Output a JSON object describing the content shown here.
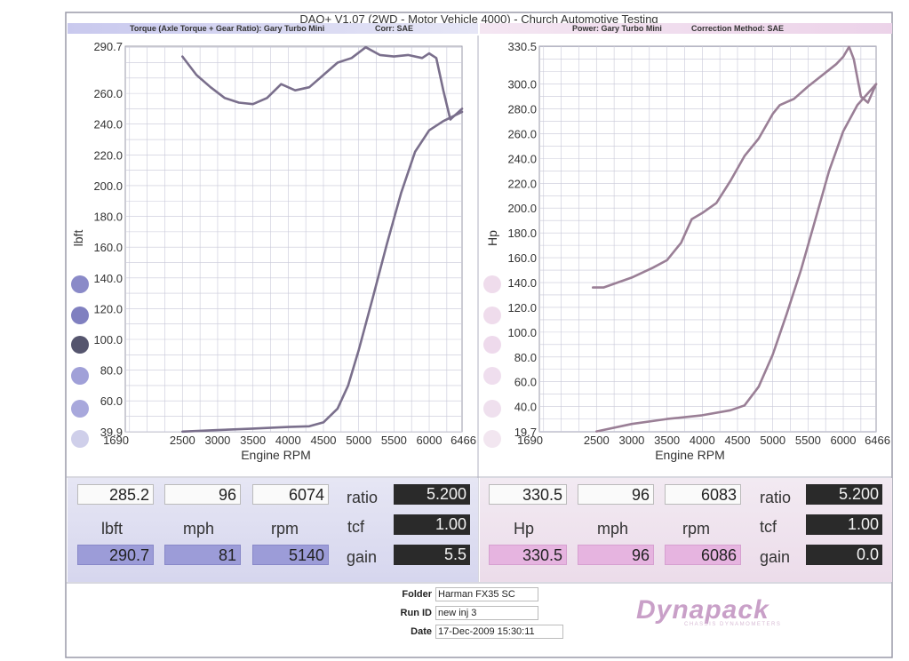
{
  "header": {
    "title": "DAQ+ V1.07 (2WD - Motor Vehicle 4000) - Church Automotive Testing",
    "left_band": "Torque (Axle Torque + Gear Ratio): Gary Turbo Mini",
    "left_corr": "Corr: SAE",
    "right_band": "Power: Gary Turbo Mini",
    "right_corr": "Correction Method: SAE"
  },
  "colors": {
    "curve_left": "#7a6f8c",
    "curve_right": "#9a7f96",
    "grid": "#c8c8d8"
  },
  "chart_data": [
    {
      "type": "line",
      "title": "",
      "xlabel": "Engine RPM",
      "ylabel": "lbft",
      "xlim": [
        1690,
        6466
      ],
      "ylim": [
        39.9,
        290.7
      ],
      "x_ticks": [
        "1690",
        "2500",
        "3000",
        "3500",
        "4000",
        "4500",
        "5000",
        "5500",
        "6000",
        "6466"
      ],
      "y_ticks": [
        "290.7",
        "260.0",
        "240.0",
        "220.0",
        "200.0",
        "180.0",
        "160.0",
        "140.0",
        "120.0",
        "100.0",
        "80.0",
        "60.0",
        "39.9"
      ],
      "grid": true,
      "series": [
        {
          "points": [
            [
              2500,
              284
            ],
            [
              2700,
              272
            ],
            [
              2900,
              264
            ],
            [
              3100,
              257
            ],
            [
              3300,
              254
            ],
            [
              3500,
              253
            ],
            [
              3700,
              257
            ],
            [
              3900,
              266
            ],
            [
              4100,
              262
            ],
            [
              4300,
              264
            ],
            [
              4500,
              272
            ],
            [
              4700,
              280
            ],
            [
              4900,
              283
            ],
            [
              5100,
              290
            ],
            [
              5300,
              285
            ],
            [
              5500,
              284
            ],
            [
              5700,
              285
            ],
            [
              5900,
              283
            ],
            [
              6000,
              286
            ],
            [
              6100,
              283
            ],
            [
              6200,
              262
            ],
            [
              6300,
              243
            ],
            [
              6466,
              250
            ]
          ]
        },
        {
          "points": [
            [
              2500,
              40
            ],
            [
              3000,
              41
            ],
            [
              3500,
              42
            ],
            [
              4000,
              43
            ],
            [
              4300,
              43.5
            ],
            [
              4500,
              46
            ],
            [
              4700,
              55
            ],
            [
              4850,
              70
            ],
            [
              5000,
              93
            ],
            [
              5200,
              127
            ],
            [
              5400,
              162
            ],
            [
              5600,
              195
            ],
            [
              5800,
              222
            ],
            [
              6000,
              236
            ],
            [
              6200,
              242
            ],
            [
              6466,
              248
            ]
          ]
        }
      ]
    },
    {
      "type": "line",
      "title": "",
      "xlabel": "Engine RPM",
      "ylabel": "Hp",
      "xlim": [
        1690,
        6466
      ],
      "ylim": [
        19.7,
        330.5
      ],
      "x_ticks": [
        "1690",
        "2500",
        "3000",
        "3500",
        "4000",
        "4500",
        "5000",
        "5500",
        "6000",
        "6466"
      ],
      "y_ticks": [
        "330.5",
        "300.0",
        "280.0",
        "260.0",
        "240.0",
        "220.0",
        "200.0",
        "180.0",
        "160.0",
        "140.0",
        "120.0",
        "100.0",
        "80.0",
        "60.0",
        "40.0",
        "19.7"
      ],
      "grid": true,
      "series": [
        {
          "points": [
            [
              2450,
              136
            ],
            [
              2600,
              136
            ],
            [
              3000,
              144
            ],
            [
              3300,
              152
            ],
            [
              3500,
              158
            ],
            [
              3700,
              172
            ],
            [
              3850,
              191
            ],
            [
              4000,
              196
            ],
            [
              4200,
              204
            ],
            [
              4400,
              222
            ],
            [
              4600,
              242
            ],
            [
              4800,
              256
            ],
            [
              5000,
              276
            ],
            [
              5100,
              283
            ],
            [
              5300,
              288
            ],
            [
              5500,
              298
            ],
            [
              5700,
              307
            ],
            [
              5900,
              316
            ],
            [
              6000,
              322
            ],
            [
              6083,
              330
            ],
            [
              6150,
              320
            ],
            [
              6250,
              290
            ],
            [
              6350,
              285
            ],
            [
              6466,
              300
            ]
          ]
        },
        {
          "points": [
            [
              2500,
              20
            ],
            [
              3000,
              26
            ],
            [
              3500,
              30
            ],
            [
              4000,
              33
            ],
            [
              4400,
              37
            ],
            [
              4600,
              41
            ],
            [
              4800,
              56
            ],
            [
              5000,
              82
            ],
            [
              5200,
              115
            ],
            [
              5400,
              150
            ],
            [
              5600,
              190
            ],
            [
              5800,
              230
            ],
            [
              6000,
              262
            ],
            [
              6200,
              283
            ],
            [
              6466,
              300
            ]
          ]
        }
      ]
    }
  ],
  "readout": {
    "left": {
      "top_values": [
        "285.2",
        "96",
        "6074"
      ],
      "units": [
        "lbft",
        "mph",
        "rpm"
      ],
      "peak_values": [
        "290.7",
        "81",
        "5140"
      ],
      "ratio_label": "ratio",
      "ratio_value": "5.200",
      "tcf_label": "tcf",
      "tcf_value": "1.00",
      "gain_label": "gain",
      "gain_value": "5.5"
    },
    "right": {
      "top_values": [
        "330.5",
        "96",
        "6083"
      ],
      "units": [
        "Hp",
        "mph",
        "rpm"
      ],
      "peak_values": [
        "330.5",
        "96",
        "6086"
      ],
      "ratio_label": "ratio",
      "ratio_value": "5.200",
      "tcf_label": "tcf",
      "tcf_value": "1.00",
      "gain_label": "gain",
      "gain_value": "0.0"
    }
  },
  "info": {
    "folder_label": "Folder",
    "folder": "Harman FX35 SC",
    "run_label": "Run ID",
    "run": "new inj 3",
    "date_label": "Date",
    "date": "17-Dec-2009 15:30:11"
  },
  "logo": {
    "text": "Dynapack",
    "subtitle": "CHASSIS DYNAMOMETERS"
  }
}
